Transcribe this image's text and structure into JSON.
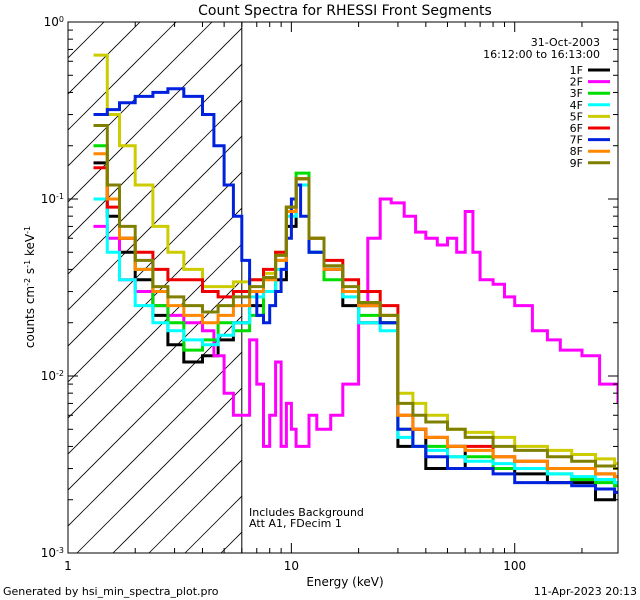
{
  "chart_data": {
    "type": "line",
    "title": "Count Spectra for RHESSI Front Segments",
    "date": "31-Oct-2003",
    "time_range": "16:12:00 to 16:13:00",
    "xlabel": "Energy (keV)",
    "ylabel": "counts cm^-2 s^-1 keV^-1",
    "x_scale": "log",
    "y_scale": "log",
    "xlim": [
      1,
      290
    ],
    "ylim": [
      0.001,
      1
    ],
    "x_ticks": [
      {
        "value": 1,
        "label": "1"
      },
      {
        "value": 10,
        "label": "10"
      },
      {
        "value": 100,
        "label": "100"
      }
    ],
    "y_ticks": [
      {
        "value": 1,
        "label": "10^0"
      },
      {
        "value": 0.1,
        "label": "10^-1"
      },
      {
        "value": 0.01,
        "label": "10^-2"
      },
      {
        "value": 0.001,
        "label": "10^-3"
      }
    ],
    "excluded_region": {
      "from_kev": 1,
      "to_kev": 6,
      "pattern": "hatched"
    },
    "annotations": [
      "Includes Background",
      "Att A1, FDecim 1"
    ],
    "legend_position": "top-right",
    "series": [
      {
        "name": "1F",
        "color": "#000000",
        "x": [
          1.3,
          1.5,
          1.7,
          2,
          2.4,
          2.8,
          3.3,
          4,
          4.7,
          5.5,
          6.5,
          7.5,
          8.5,
          9.5,
          10.5,
          12,
          14,
          17,
          20,
          25,
          30,
          35,
          40,
          50,
          60,
          80,
          100,
          140,
          180,
          230,
          280
        ],
        "values": [
          0.16,
          0.08,
          0.05,
          0.035,
          0.022,
          0.015,
          0.012,
          0.013,
          0.016,
          0.02,
          0.025,
          0.03,
          0.035,
          0.07,
          0.12,
          0.05,
          0.04,
          0.025,
          0.02,
          0.02,
          0.004,
          0.005,
          0.003,
          0.004,
          0.003,
          0.003,
          0.0028,
          0.0025,
          0.0025,
          0.002,
          0.0022
        ]
      },
      {
        "name": "2F",
        "color": "#ff00ff",
        "x": [
          1.3,
          1.5,
          1.7,
          2,
          2.4,
          2.8,
          3.3,
          4,
          4.5,
          5,
          5.5,
          6.5,
          7,
          7.5,
          8,
          8.5,
          9,
          9.5,
          10,
          10.5,
          11,
          12,
          13,
          15,
          17,
          20,
          22,
          25,
          28,
          32,
          36,
          40,
          45,
          50,
          55,
          60,
          65,
          70,
          80,
          90,
          100,
          120,
          140,
          160,
          200,
          240,
          290
        ],
        "values": [
          0.07,
          0.06,
          0.035,
          0.03,
          0.025,
          0.022,
          0.02,
          0.018,
          0.013,
          0.008,
          0.006,
          0.016,
          0.009,
          0.004,
          0.006,
          0.012,
          0.004,
          0.007,
          0.005,
          0.004,
          0.004,
          0.006,
          0.005,
          0.006,
          0.009,
          0.025,
          0.06,
          0.1,
          0.095,
          0.08,
          0.065,
          0.06,
          0.055,
          0.06,
          0.05,
          0.085,
          0.05,
          0.035,
          0.033,
          0.028,
          0.025,
          0.018,
          0.016,
          0.014,
          0.013,
          0.009,
          0.007
        ]
      },
      {
        "name": "3F",
        "color": "#00dd00",
        "x": [
          1.3,
          1.5,
          1.7,
          2,
          2.4,
          2.8,
          3.3,
          4,
          4.7,
          5.5,
          6.5,
          7.5,
          8.5,
          9.5,
          10.5,
          12,
          14,
          17,
          20,
          25,
          30,
          35,
          40,
          50,
          60,
          80,
          100,
          140,
          180,
          230,
          280
        ],
        "values": [
          0.2,
          0.12,
          0.06,
          0.04,
          0.025,
          0.02,
          0.014,
          0.016,
          0.02,
          0.018,
          0.022,
          0.03,
          0.045,
          0.09,
          0.14,
          0.05,
          0.035,
          0.03,
          0.022,
          0.02,
          0.005,
          0.004,
          0.004,
          0.0035,
          0.0035,
          0.003,
          0.003,
          0.0028,
          0.0026,
          0.0025,
          0.0024
        ]
      },
      {
        "name": "4F",
        "color": "#00ffff",
        "x": [
          1.3,
          1.5,
          1.7,
          2,
          2.4,
          2.8,
          3.3,
          4,
          4.7,
          5.5,
          6.5,
          7.5,
          8.5,
          9.5,
          10.5,
          12,
          14,
          17,
          20,
          25,
          30,
          35,
          40,
          50,
          60,
          80,
          100,
          140,
          180,
          230,
          280
        ],
        "values": [
          0.1,
          0.05,
          0.035,
          0.025,
          0.02,
          0.018,
          0.016,
          0.015,
          0.017,
          0.02,
          0.028,
          0.03,
          0.04,
          0.08,
          0.12,
          0.05,
          0.04,
          0.028,
          0.02,
          0.018,
          0.0045,
          0.004,
          0.0038,
          0.0035,
          0.0033,
          0.0032,
          0.003,
          0.0028,
          0.0027,
          0.0026,
          0.0025
        ]
      },
      {
        "name": "5F",
        "color": "#cccc00",
        "x": [
          1.3,
          1.5,
          1.7,
          2,
          2.4,
          2.8,
          3.3,
          4,
          4.7,
          5.5,
          6.5,
          7.5,
          8.5,
          9.5,
          10.5,
          12,
          14,
          17,
          20,
          25,
          30,
          35,
          40,
          50,
          60,
          80,
          100,
          140,
          180,
          230,
          280
        ],
        "values": [
          0.65,
          0.3,
          0.2,
          0.12,
          0.07,
          0.05,
          0.04,
          0.032,
          0.032,
          0.034,
          0.035,
          0.038,
          0.05,
          0.09,
          0.13,
          0.06,
          0.04,
          0.03,
          0.025,
          0.022,
          0.008,
          0.007,
          0.006,
          0.005,
          0.0048,
          0.0045,
          0.004,
          0.0038,
          0.0036,
          0.0034,
          0.0032
        ]
      },
      {
        "name": "6F",
        "color": "#ee0000",
        "x": [
          1.3,
          1.5,
          1.7,
          2,
          2.4,
          2.8,
          3.3,
          4,
          4.7,
          5.5,
          6.5,
          7.5,
          8.5,
          9.5,
          10.5,
          12,
          14,
          17,
          20,
          25,
          30,
          35,
          40,
          50,
          60,
          80,
          100,
          140,
          180,
          230,
          280
        ],
        "values": [
          0.15,
          0.09,
          0.06,
          0.05,
          0.04,
          0.035,
          0.035,
          0.03,
          0.028,
          0.03,
          0.035,
          0.04,
          0.05,
          0.09,
          0.13,
          0.06,
          0.045,
          0.035,
          0.03,
          0.025,
          0.006,
          0.005,
          0.0045,
          0.004,
          0.004,
          0.0035,
          0.0033,
          0.003,
          0.003,
          0.0028,
          0.0027
        ]
      },
      {
        "name": "7F",
        "color": "#0022dd",
        "x": [
          1.3,
          1.5,
          1.7,
          2,
          2.4,
          2.8,
          3.3,
          4,
          4.5,
          5,
          5.5,
          6,
          6.5,
          7,
          7.5,
          8,
          8.5,
          9,
          9.5,
          10,
          10.5,
          11,
          12,
          14,
          17,
          20,
          25,
          30,
          35,
          40,
          50,
          60,
          80,
          100,
          140,
          180,
          230,
          280
        ],
        "values": [
          0.3,
          0.32,
          0.35,
          0.38,
          0.4,
          0.42,
          0.38,
          0.3,
          0.2,
          0.12,
          0.08,
          0.045,
          0.03,
          0.022,
          0.02,
          0.025,
          0.03,
          0.04,
          0.06,
          0.1,
          0.12,
          0.08,
          0.05,
          0.04,
          0.03,
          0.025,
          0.02,
          0.005,
          0.004,
          0.0035,
          0.003,
          0.003,
          0.0028,
          0.0025,
          0.0025,
          0.0024,
          0.0023,
          0.0022
        ]
      },
      {
        "name": "8F",
        "color": "#ff8800",
        "x": [
          1.3,
          1.5,
          1.7,
          2,
          2.4,
          2.8,
          3.3,
          4,
          4.7,
          5.5,
          6.5,
          7.5,
          8.5,
          9.5,
          10.5,
          12,
          14,
          17,
          20,
          25,
          30,
          35,
          40,
          50,
          60,
          80,
          100,
          140,
          180,
          230,
          280
        ],
        "values": [
          0.18,
          0.1,
          0.06,
          0.04,
          0.03,
          0.025,
          0.022,
          0.02,
          0.022,
          0.025,
          0.03,
          0.035,
          0.045,
          0.085,
          0.13,
          0.06,
          0.04,
          0.03,
          0.025,
          0.022,
          0.006,
          0.005,
          0.0045,
          0.004,
          0.0038,
          0.0035,
          0.0033,
          0.003,
          0.003,
          0.0028,
          0.0027
        ]
      },
      {
        "name": "9F",
        "color": "#808000",
        "x": [
          1.3,
          1.5,
          1.7,
          2,
          2.4,
          2.8,
          3.3,
          4,
          4.7,
          5.5,
          6.5,
          7.5,
          8.5,
          9.5,
          10.5,
          12,
          14,
          17,
          20,
          25,
          30,
          35,
          40,
          50,
          60,
          80,
          100,
          140,
          180,
          230,
          280
        ],
        "values": [
          0.26,
          0.12,
          0.07,
          0.045,
          0.032,
          0.028,
          0.025,
          0.023,
          0.025,
          0.028,
          0.032,
          0.036,
          0.048,
          0.09,
          0.13,
          0.06,
          0.042,
          0.032,
          0.026,
          0.022,
          0.007,
          0.006,
          0.0055,
          0.005,
          0.0045,
          0.004,
          0.0038,
          0.0035,
          0.0033,
          0.0031,
          0.003
        ]
      }
    ]
  },
  "footer": {
    "generated_by": "Generated by hsi_min_spectra_plot.pro",
    "timestamp": "11-Apr-2023 20:13"
  }
}
